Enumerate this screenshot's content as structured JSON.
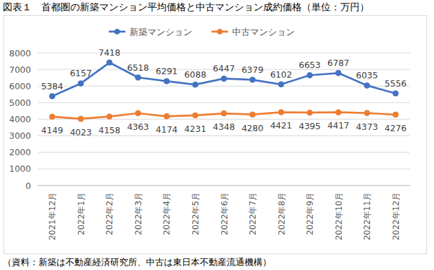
{
  "chart_data": {
    "type": "line",
    "title": "図表１　首都圏の新築マンション平均価格と中古マンション成約価格（単位：万円）",
    "source": "（資料：新築は不動産経済研究所、中古は東日本不動産流通機構）",
    "categories": [
      "2021年12月",
      "2022年1月",
      "2022年2月",
      "2022年3月",
      "2022年4月",
      "2022年5月",
      "2022年6月",
      "2022年7月",
      "2022年8月",
      "2022年9月",
      "2022年10月",
      "2022年11月",
      "2022年12月"
    ],
    "series": [
      {
        "name": "新築マンション",
        "color": "#4472c4",
        "marker": "circle",
        "values": [
          5384,
          6157,
          7418,
          6518,
          6291,
          6088,
          6447,
          6379,
          6102,
          6653,
          6787,
          6035,
          5556
        ]
      },
      {
        "name": "中古マンション",
        "color": "#ed7d31",
        "marker": "circle",
        "values": [
          4149,
          4023,
          4158,
          4363,
          4174,
          4231,
          4348,
          4280,
          4421,
          4395,
          4417,
          4373,
          4276
        ]
      }
    ],
    "ylim": [
      0,
      8000
    ],
    "yticks": [
      0,
      1000,
      2000,
      3000,
      4000,
      5000,
      6000,
      7000,
      8000
    ],
    "grid": true,
    "legend": "top",
    "data_labels": true
  }
}
